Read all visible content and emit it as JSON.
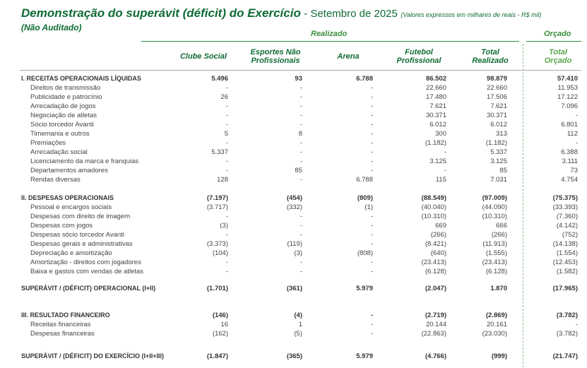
{
  "header": {
    "title": "Demonstração do superávit (déficit) do Exercício",
    "period": "- Setembro de 2025",
    "units": "(Valores expressos em milhares de reais - R$ mil)",
    "audit": "(Não Auditado)"
  },
  "groups": {
    "realizado": "Realizado",
    "orcado": "Orçado"
  },
  "columns": [
    [
      "Clube Social"
    ],
    [
      "Esportes Não",
      "Profissionais"
    ],
    [
      "Arena"
    ],
    [
      "Futebol",
      "Profissional"
    ],
    [
      "Total",
      "Realizado"
    ],
    [
      "Total",
      "Orçado"
    ]
  ],
  "rows": [
    {
      "label": "I. RECEITAS OPERACIONAIS LÍQUIDAS",
      "cells": [
        "5.496",
        "93",
        "6.788",
        "86.502",
        "98.879",
        "57.410"
      ]
    },
    {
      "label": "Direitos de transmissão",
      "cells": [
        "-",
        "-",
        "-",
        "22.660",
        "22.660",
        "11.953"
      ]
    },
    {
      "label": "Publicidade e patrocínio",
      "cells": [
        "26",
        "-",
        "-",
        "17.480",
        "17.506",
        "17.122"
      ]
    },
    {
      "label": "Arrecadação de jogos",
      "cells": [
        "-",
        "-",
        "-",
        "7.621",
        "7.621",
        "7.096"
      ]
    },
    {
      "label": "Negociação de atletas",
      "cells": [
        "-",
        "-",
        "-",
        "30.371",
        "30.371",
        "-"
      ]
    },
    {
      "label": "Sócio torcedor Avanti",
      "cells": [
        "-",
        "-",
        "-",
        "6.012",
        "6.012",
        "6.801"
      ]
    },
    {
      "label": "Timemania e outros",
      "cells": [
        "5",
        "8",
        "-",
        "300",
        "313",
        "112"
      ]
    },
    {
      "label": "Premiações",
      "cells": [
        "-",
        "-",
        "-",
        "(1.182)",
        "(1.182)",
        "-"
      ]
    },
    {
      "label": "Arrecadação social",
      "cells": [
        "5.337",
        "-",
        "-",
        "-",
        "5.337",
        "6.388"
      ]
    },
    {
      "label": "Licenciamento da marca e franquias",
      "cells": [
        "-",
        "-",
        "-",
        "3.125",
        "3.125",
        "3.111"
      ]
    },
    {
      "label": "Departamentos amadores",
      "cells": [
        "-",
        "85",
        "-",
        "-",
        "85",
        "73"
      ]
    },
    {
      "label": "Rendas diversas",
      "cells": [
        "128",
        "-",
        "6.788",
        "115",
        "7.031",
        "4.754"
      ]
    },
    {
      "label": "II. DESPESAS OPERACIONAIS",
      "cells": [
        "(7.197)",
        "(454)",
        "(809)",
        "(88.549)",
        "(97.009)",
        "(75.375)"
      ]
    },
    {
      "label": "Pessoal e encargos sociais",
      "cells": [
        "(3.717)",
        "(332)",
        "(1)",
        "(40.040)",
        "(44.090)",
        "(33.393)"
      ]
    },
    {
      "label": "Despesas com direito de imagem",
      "cells": [
        "-",
        "-",
        "-",
        "(10.310)",
        "(10.310)",
        "(7.360)"
      ]
    },
    {
      "label": "Despesas com jogos",
      "cells": [
        "(3)",
        "-",
        "-",
        "669",
        "666",
        "(4.142)"
      ]
    },
    {
      "label": "Despesas sócio torcedor Avanti",
      "cells": [
        "-",
        "-",
        "-",
        "(266)",
        "(266)",
        "(752)"
      ]
    },
    {
      "label": "Despesas gerais e administrativas",
      "cells": [
        "(3.373)",
        "(119)",
        "-",
        "(8.421)",
        "(11.913)",
        "(14.138)"
      ]
    },
    {
      "label": "Depreciação e amortização",
      "cells": [
        "(104)",
        "(3)",
        "(808)",
        "(640)",
        "(1.555)",
        "(1.554)"
      ]
    },
    {
      "label": "Amortização  - direitos com jogadores",
      "cells": [
        "-",
        "-",
        "-",
        "(23.413)",
        "(23.413)",
        "(12.453)"
      ]
    },
    {
      "label": "Baixa e gastos com vendas de atletas",
      "cells": [
        "-",
        "-",
        "-",
        "(6.128)",
        "(6.128)",
        "(1.582)"
      ]
    },
    {
      "label": "SUPERÁVIT / (DÉFICIT) OPERACIONAL (I+II)",
      "cells": [
        "(1.701)",
        "(361)",
        "5.979",
        "(2.047)",
        "1.870",
        "(17.965)"
      ]
    },
    {
      "label": "III. RESULTADO FINANCEIRO",
      "cells": [
        "(146)",
        "(4)",
        "-",
        "(2.719)",
        "(2.869)",
        "(3.782)"
      ]
    },
    {
      "label": "Receitas financeiras",
      "cells": [
        "16",
        "1",
        "-",
        "20.144",
        "20.161",
        "-"
      ]
    },
    {
      "label": "Despesas financeiras",
      "cells": [
        "(162)",
        "(5)",
        "-",
        "(22.863)",
        "(23.030)",
        "(3.782)"
      ]
    },
    {
      "label": "SUPERÁVIT / (DÉFICIT) DO EXERCÍCIO  (I+II+III)",
      "cells": [
        "(1.847)",
        "(365)",
        "5.979",
        "(4.766)",
        "(999)",
        "(21.747)"
      ]
    }
  ]
}
